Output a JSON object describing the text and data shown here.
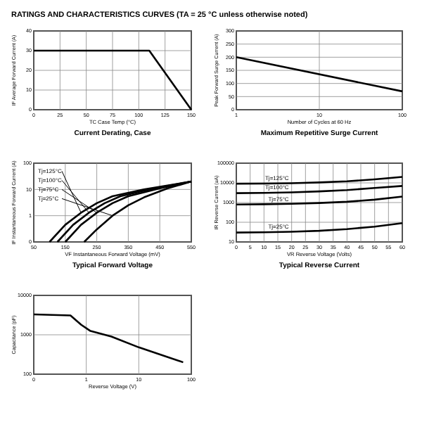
{
  "chart_data": [
    {
      "type": "line",
      "title": "Current Derating, Case",
      "annotations": [
        "RATINGS AND CHARACTERISTICS CURVES (TA = 25 °C unless otherwise noted)"
      ],
      "xlabel": "TC Case Temp (°C)",
      "ylabel": "IF Average Forward Current (A)",
      "x": [
        0,
        110,
        150
      ],
      "values": [
        30,
        30,
        0
      ],
      "color": "#000000",
      "xlim": [
        0,
        150
      ],
      "xticks": [
        0,
        25,
        50,
        75,
        100,
        125,
        150
      ],
      "ylim": [
        0,
        40
      ],
      "yticks": [
        0,
        10,
        20,
        30,
        40
      ],
      "grid": true,
      "marker": "none"
    },
    {
      "type": "line",
      "title": "Maximum Repetitive Surge Current",
      "xlabel": "Number of Cycles at 60 Hz",
      "ylabel": "Peak Forward Surge Current (A)",
      "x": [
        1,
        100
      ],
      "values": [
        200,
        70
      ],
      "color": "#000000",
      "log": "x",
      "xlim": [
        1,
        100
      ],
      "xticks": [
        1,
        10,
        100
      ],
      "ylim": [
        0,
        300
      ],
      "yticks": [
        0,
        50,
        100,
        150,
        200,
        250,
        300
      ],
      "grid": true,
      "marker": "none"
    },
    {
      "type": "line",
      "title": "Typical Forward Voltage",
      "xlabel": "VF Instantaneous Forward Voltage (mV)",
      "ylabel": "IF Instantaneous Forward Current (A)",
      "log": "y",
      "xlim": [
        50,
        550
      ],
      "xticks": [
        50,
        150,
        250,
        350,
        450,
        550
      ],
      "ylim": [
        0.1,
        100
      ],
      "yticks": [
        {
          "value": 0.1,
          "label": "0"
        },
        1,
        10,
        100
      ],
      "grid": true,
      "marker": "none",
      "series": [
        {
          "name": "Tj=125°C",
          "color": "#000000",
          "x": [
            100,
            150,
            200,
            250,
            300,
            400,
            550
          ],
          "values": [
            0.1,
            0.45,
            1.3,
            3,
            5.5,
            10,
            20
          ]
        },
        {
          "name": "Tj=100°C",
          "color": "#000000",
          "x": [
            125,
            175,
            225,
            275,
            325,
            425,
            550
          ],
          "values": [
            0.1,
            0.45,
            1.3,
            3,
            5.5,
            10.5,
            20
          ]
        },
        {
          "name": "Tj=75°C",
          "color": "#000000",
          "x": [
            150,
            200,
            250,
            300,
            350,
            450,
            550
          ],
          "values": [
            0.1,
            0.45,
            1.3,
            3,
            5.5,
            11,
            20
          ]
        },
        {
          "name": "Tj=25°C",
          "color": "#000000",
          "x": [
            210,
            250,
            300,
            350,
            400,
            475,
            550
          ],
          "values": [
            0.1,
            0.3,
            1,
            2.5,
            5,
            11,
            20
          ]
        }
      ]
    },
    {
      "type": "line",
      "title": "Typical Reverse Current",
      "xlabel": "VR Reverse Voltage (Volts)",
      "ylabel": "IR Reverse Current (uA)",
      "log": "y",
      "x": [
        0,
        10,
        20,
        30,
        40,
        50,
        60
      ],
      "xlim": [
        0,
        60
      ],
      "xticks": [
        0,
        5,
        10,
        15,
        20,
        25,
        30,
        35,
        40,
        45,
        50,
        55,
        60
      ],
      "ylim": [
        10,
        100000
      ],
      "yticks": [
        10,
        100,
        1000,
        10000,
        100000
      ],
      "grid": true,
      "marker": "none",
      "series": [
        {
          "name": "Tj=125°C",
          "color": "#000000",
          "values": [
            9000,
            9200,
            9600,
            10500,
            12000,
            15000,
            20000
          ]
        },
        {
          "name": "Tj=100°C",
          "color": "#000000",
          "values": [
            3000,
            3100,
            3300,
            3700,
            4300,
            5500,
            7000
          ]
        },
        {
          "name": "Tj=75°C",
          "color": "#000000",
          "values": [
            800,
            820,
            870,
            950,
            1100,
            1400,
            2000
          ]
        },
        {
          "name": "Tj=25°C",
          "color": "#000000",
          "values": [
            30,
            31,
            33,
            37,
            45,
            60,
            90
          ]
        }
      ]
    },
    {
      "type": "line",
      "xlabel": "Reverse Voltage (V)",
      "ylabel": "Capacitance (pF)",
      "log": "xy",
      "x": [
        0.1,
        0.5,
        0.8,
        1.2,
        3,
        10,
        70
      ],
      "values": [
        3300,
        3100,
        1800,
        1250,
        900,
        480,
        200
      ],
      "color": "#000000",
      "xlim": [
        0.1,
        100
      ],
      "xticks": [
        {
          "value": 0.1,
          "label": "0"
        },
        1,
        10,
        100
      ],
      "ylim": [
        100,
        10000
      ],
      "yticks": [
        100,
        1000,
        10000
      ],
      "grid": true,
      "marker": "none"
    }
  ]
}
